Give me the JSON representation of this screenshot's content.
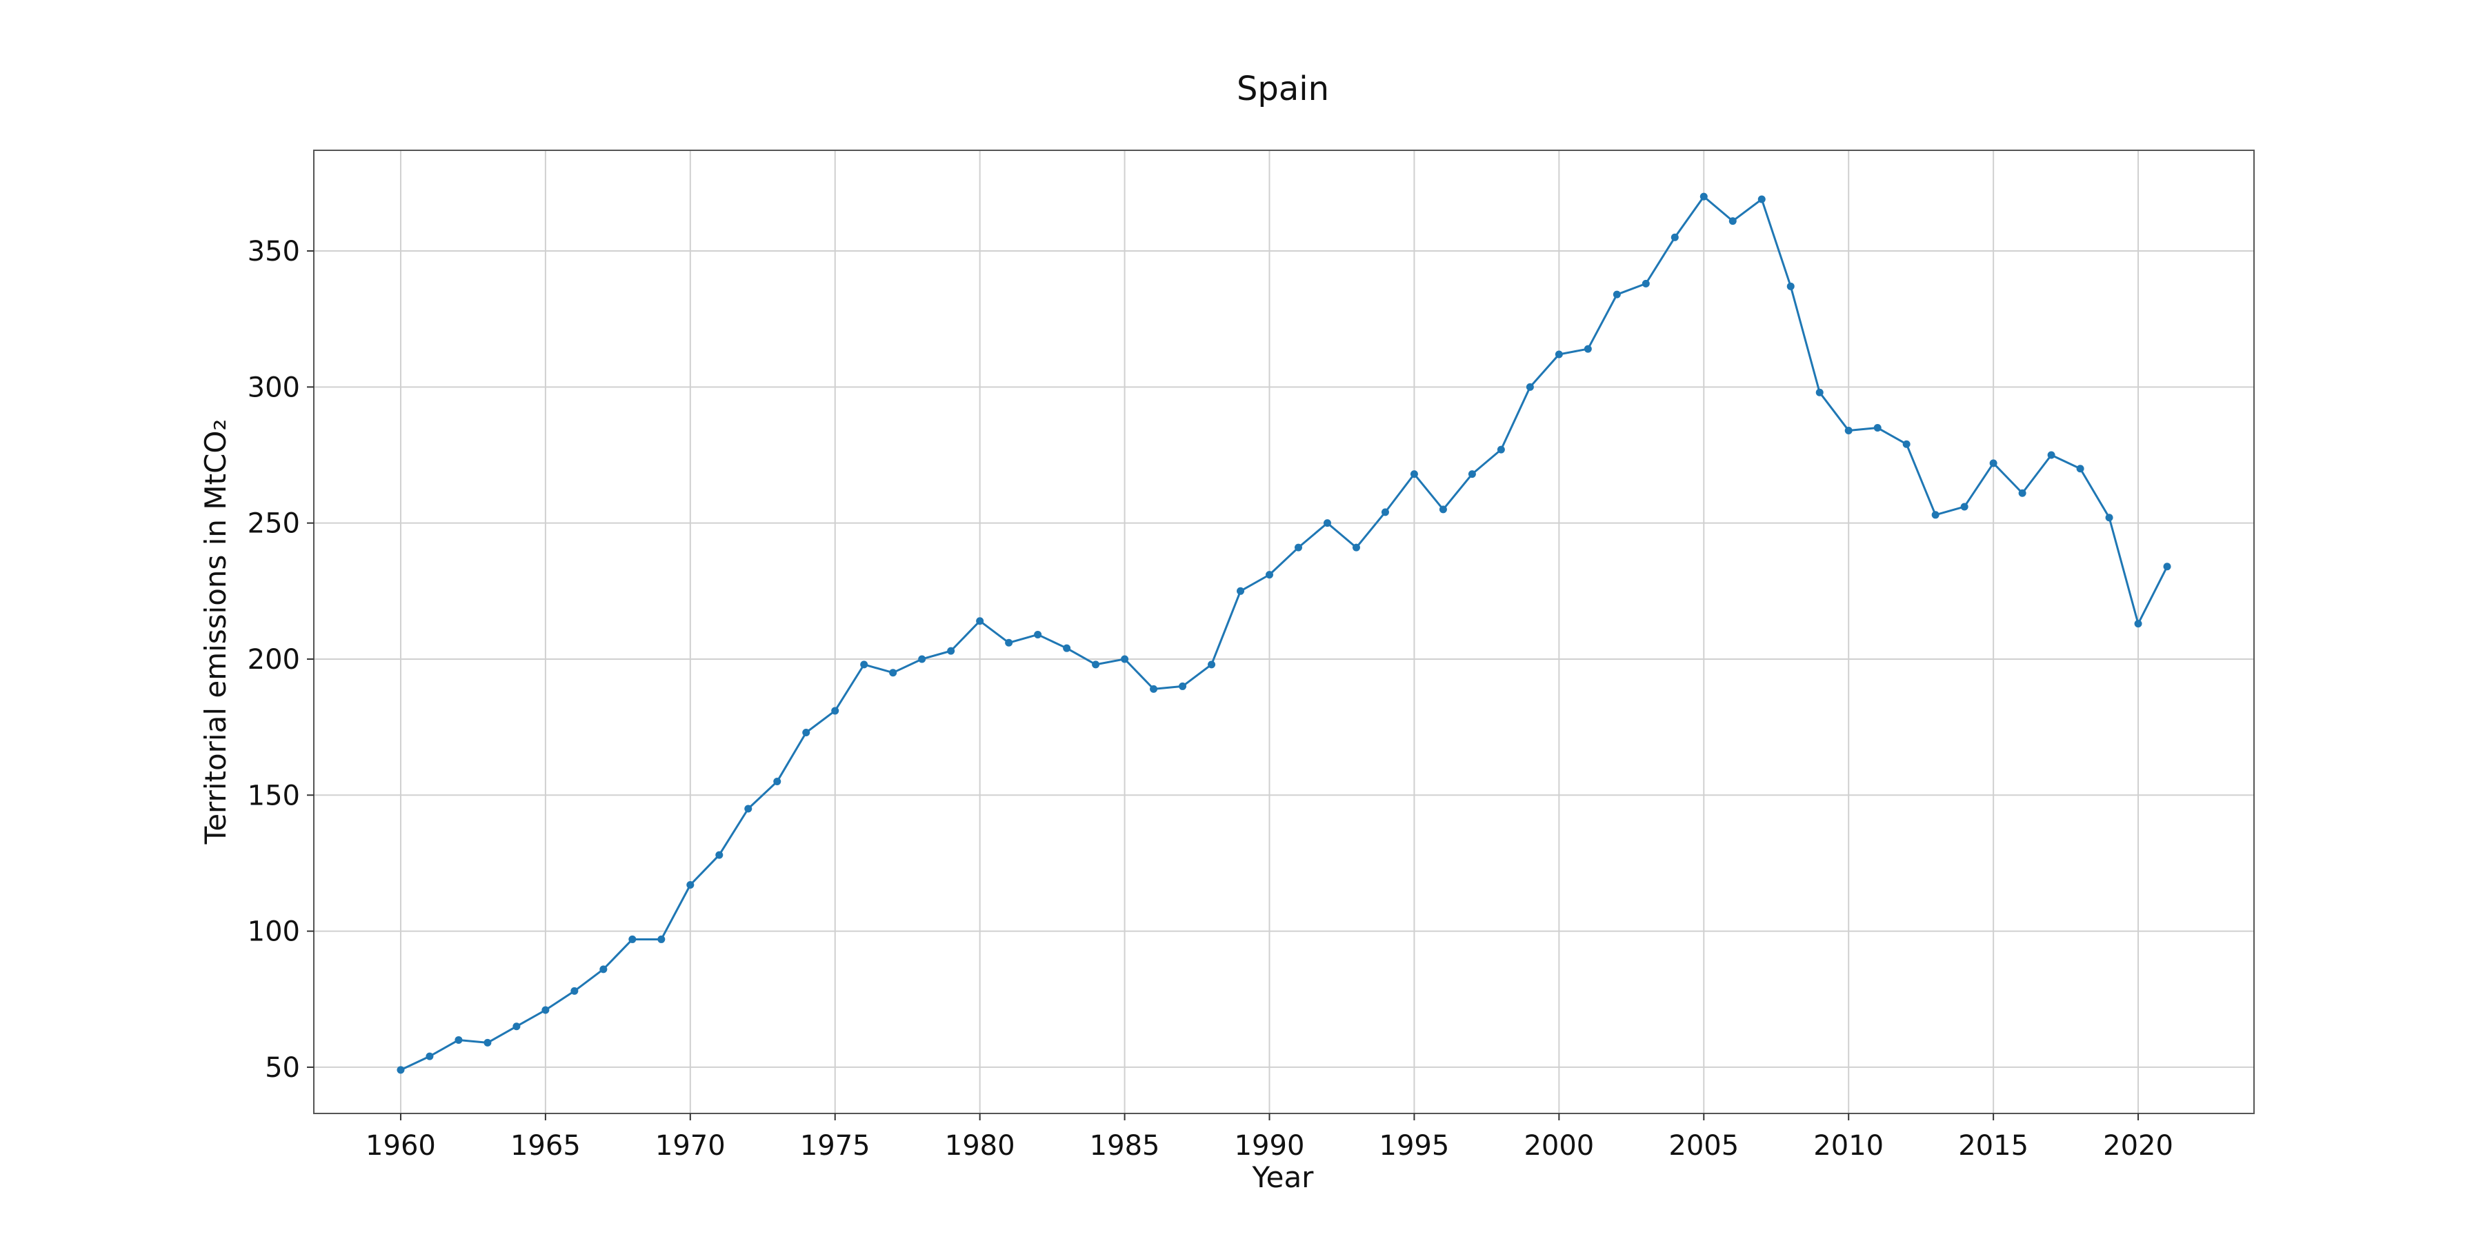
{
  "chart_data": {
    "type": "line",
    "title": "Spain",
    "xlabel": "Year",
    "ylabel": "Territorial emissions in MtCO₂",
    "xlim": [
      1957,
      2024
    ],
    "ylim": [
      33,
      387
    ],
    "x_ticks": [
      1960,
      1965,
      1970,
      1975,
      1980,
      1985,
      1990,
      1995,
      2000,
      2005,
      2010,
      2015,
      2020
    ],
    "y_ticks": [
      50,
      100,
      150,
      200,
      250,
      300,
      350
    ],
    "grid": true,
    "color": "#1f77b4",
    "x": [
      1960,
      1961,
      1962,
      1963,
      1964,
      1965,
      1966,
      1967,
      1968,
      1969,
      1970,
      1971,
      1972,
      1973,
      1974,
      1975,
      1976,
      1977,
      1978,
      1979,
      1980,
      1981,
      1982,
      1983,
      1984,
      1985,
      1986,
      1987,
      1988,
      1989,
      1990,
      1991,
      1992,
      1993,
      1994,
      1995,
      1996,
      1997,
      1998,
      1999,
      2000,
      2001,
      2002,
      2003,
      2004,
      2005,
      2006,
      2007,
      2008,
      2009,
      2010,
      2011,
      2012,
      2013,
      2014,
      2015,
      2016,
      2017,
      2018,
      2019,
      2020,
      2021
    ],
    "y": [
      49,
      54,
      60,
      59,
      65,
      71,
      78,
      86,
      97,
      97,
      117,
      128,
      145,
      155,
      173,
      181,
      198,
      195,
      200,
      203,
      214,
      206,
      209,
      204,
      198,
      200,
      189,
      190,
      198,
      225,
      231,
      241,
      250,
      241,
      254,
      268,
      255,
      268,
      277,
      300,
      312,
      314,
      334,
      338,
      355,
      370,
      361,
      369,
      337,
      298,
      284,
      285,
      279,
      253,
      256,
      272,
      261,
      275,
      270,
      252,
      213,
      234
    ]
  }
}
